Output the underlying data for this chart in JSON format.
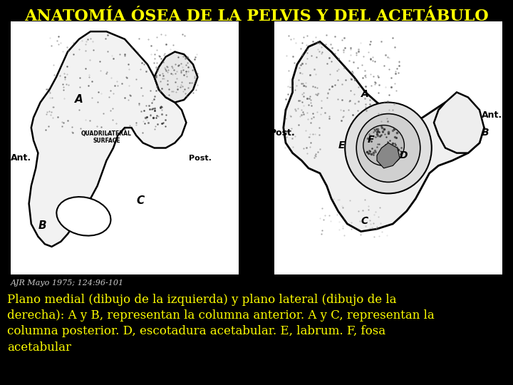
{
  "background_color": "#000000",
  "title": "ANATOMÍA ÓSEA DE LA PELVIS Y DEL ACETÁBULO",
  "title_color": "#ffff00",
  "title_fontsize": 16,
  "citation": "AJR Mayo 1975; 124:96-101",
  "citation_color": "#cccccc",
  "citation_fontsize": 8,
  "description": "Plano medial (dibujo de la izquierda) y plano lateral (dibujo de la\nderecha): A y B, representan la columna anterior. A y C, representan la\ncolumna posterior. D, escotadura acetabular. E, labrum. F, fosa\nacetabular",
  "description_color": "#ffff00",
  "description_fontsize": 12,
  "image_bg": "#ffffff"
}
